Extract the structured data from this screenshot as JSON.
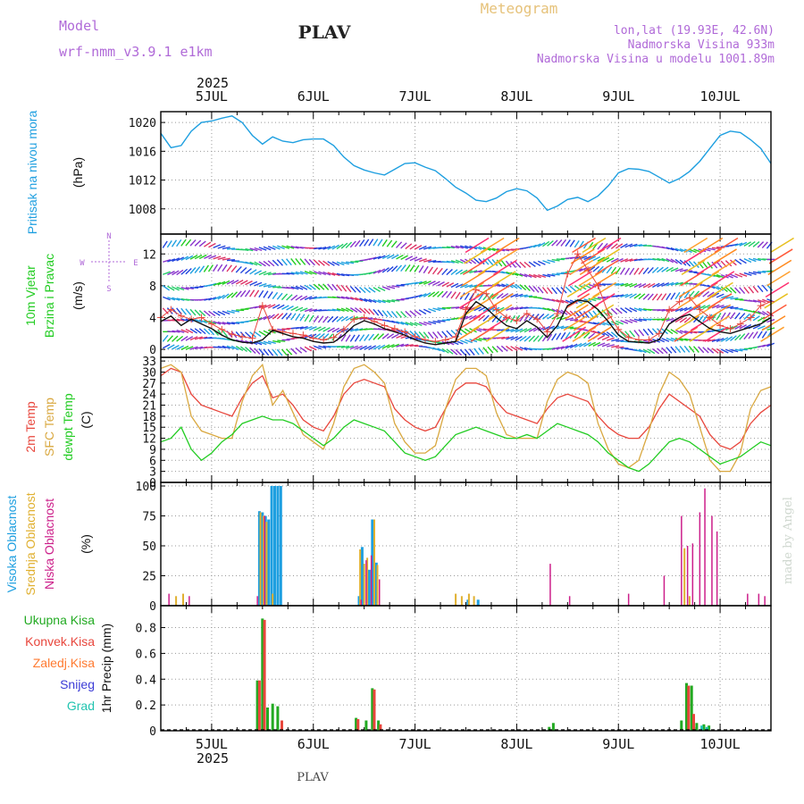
{
  "header": {
    "model_label": "Model",
    "model_name": "wrf-nmm_v3.9.1  e1km",
    "station": "PLAV",
    "title": "Meteogram",
    "location": "lon,lat (19.93E, 42.6N)",
    "altitude": "Nadmorska Visina 933m",
    "model_altitude": "Nadmorska Visina u modelu 1001.89m",
    "footer_station": "PLAV",
    "credit": "made by Angel"
  },
  "time_axis": {
    "year": "2025",
    "day_labels": [
      "5JUL",
      "6JUL",
      "7JUL",
      "8JUL",
      "9JUL",
      "10JUL"
    ],
    "day_values": [
      5,
      6,
      7,
      8,
      9,
      10
    ],
    "range_days": [
      4.5,
      10.5
    ]
  },
  "colors": {
    "pressure": "#1e9fe0",
    "t2m": "#e8463c",
    "tsfc": "#d9a840",
    "tdew": "#22cc22",
    "wind": "#111111",
    "wind_max": "#e8463c",
    "cloud_high": "#1e9fe0",
    "cloud_mid": "#e0b030",
    "cloud_low": "#cc1f8a",
    "precip_total": "#22aa22",
    "precip_conv": "#e8463c",
    "precip_frozen": "#ff7a30",
    "snow": "#3b3bd6",
    "hail": "#22c4b0"
  },
  "chart_data": [
    {
      "type": "line",
      "panel": "pressure",
      "ylabel": [
        "Pritisak na nivou mora",
        "(hPa)"
      ],
      "ylim": [
        1004.5,
        1021.5
      ],
      "yticks": [
        1008,
        1012,
        1016,
        1020
      ],
      "series": [
        {
          "x": [
            4.5,
            4.6,
            4.7,
            4.8,
            4.9,
            5.0,
            5.1,
            5.2,
            5.3,
            5.4,
            5.5,
            5.6,
            5.7,
            5.8,
            5.9,
            6.0,
            6.1,
            6.2,
            6.3,
            6.4,
            6.5,
            6.6,
            6.7,
            6.8,
            6.9,
            7.0,
            7.1,
            7.2,
            7.3,
            7.4,
            7.5,
            7.6,
            7.7,
            7.8,
            7.9,
            8.0,
            8.1,
            8.2,
            8.3,
            8.4,
            8.5,
            8.6,
            8.7,
            8.8,
            8.9,
            9.0,
            9.1,
            9.2,
            9.3,
            9.4,
            9.5,
            9.6,
            9.7,
            9.8,
            9.9,
            10.0,
            10.1,
            10.2,
            10.3,
            10.4,
            10.5
          ],
          "values": [
            1018.5,
            1016.5,
            1016.8,
            1018.8,
            1020.0,
            1020.2,
            1020.6,
            1020.9,
            1020.0,
            1018.2,
            1017.0,
            1018.0,
            1017.4,
            1017.2,
            1017.6,
            1017.7,
            1017.7,
            1016.8,
            1015.2,
            1014.0,
            1013.4,
            1013.0,
            1012.7,
            1013.5,
            1014.3,
            1014.4,
            1013.8,
            1013.3,
            1012.2,
            1011.0,
            1010.2,
            1009.2,
            1009.0,
            1009.5,
            1010.4,
            1010.8,
            1010.5,
            1009.5,
            1007.8,
            1008.4,
            1009.3,
            1009.6,
            1009.0,
            1009.8,
            1011.2,
            1013.0,
            1013.6,
            1013.5,
            1013.2,
            1012.4,
            1011.6,
            1012.2,
            1013.2,
            1014.6,
            1016.4,
            1018.2,
            1018.8,
            1018.6,
            1017.6,
            1016.4,
            1014.3
          ]
        }
      ]
    },
    {
      "type": "line",
      "panel": "wind",
      "ylabel": [
        "10m Vjetar",
        "Brzina i Pravac",
        "(m/s)"
      ],
      "compass": {
        "n": "N",
        "e": "E",
        "s": "S",
        "w": "W"
      },
      "ylim": [
        -1,
        14.5
      ],
      "yticks": [
        0,
        4,
        8,
        12
      ],
      "series": [
        {
          "name": "speed",
          "x": [
            4.5,
            4.6,
            4.7,
            4.8,
            4.9,
            5.0,
            5.1,
            5.2,
            5.3,
            5.4,
            5.5,
            5.6,
            5.7,
            5.8,
            5.9,
            6.0,
            6.1,
            6.2,
            6.3,
            6.4,
            6.5,
            6.6,
            6.7,
            6.8,
            6.9,
            7.0,
            7.1,
            7.2,
            7.3,
            7.4,
            7.5,
            7.6,
            7.7,
            7.8,
            7.9,
            8.0,
            8.1,
            8.2,
            8.3,
            8.4,
            8.5,
            8.6,
            8.7,
            8.8,
            8.9,
            9.0,
            9.1,
            9.2,
            9.3,
            9.4,
            9.5,
            9.6,
            9.7,
            9.8,
            9.9,
            10.0,
            10.1,
            10.2,
            10.3,
            10.4,
            10.5
          ],
          "values": [
            3.5,
            4.2,
            3.0,
            3.8,
            3.2,
            2.6,
            1.8,
            1.2,
            0.9,
            0.8,
            1.2,
            2.4,
            2.0,
            1.6,
            1.4,
            1.0,
            0.8,
            0.9,
            1.8,
            3.0,
            3.6,
            3.2,
            2.6,
            2.2,
            1.8,
            1.2,
            0.8,
            0.6,
            0.8,
            1.0,
            4.5,
            6.0,
            5.2,
            4.0,
            3.0,
            2.6,
            3.6,
            2.8,
            1.5,
            3.0,
            5.5,
            6.2,
            6.0,
            5.0,
            3.5,
            1.8,
            1.0,
            0.9,
            0.8,
            1.2,
            3.2,
            4.0,
            4.4,
            3.5,
            2.6,
            2.2,
            2.0,
            2.4,
            2.8,
            3.2,
            4.0
          ]
        },
        {
          "name": "gust",
          "x": [
            4.5,
            4.6,
            4.7,
            4.8,
            4.9,
            5.0,
            5.1,
            5.2,
            5.3,
            5.4,
            5.5,
            5.6,
            5.7,
            5.8,
            5.9,
            6.0,
            6.1,
            6.2,
            6.3,
            6.4,
            6.5,
            6.6,
            6.7,
            6.8,
            6.9,
            7.0,
            7.1,
            7.2,
            7.3,
            7.4,
            7.5,
            7.6,
            7.7,
            7.8,
            7.9,
            8.0,
            8.1,
            8.2,
            8.3,
            8.4,
            8.5,
            8.6,
            8.7,
            8.8,
            8.9,
            9.0,
            9.1,
            9.2,
            9.3,
            9.4,
            9.5,
            9.6,
            9.7,
            9.8,
            9.9,
            10.0,
            10.1,
            10.2,
            10.3,
            10.4,
            10.5
          ],
          "values": [
            4.0,
            5.0,
            4.2,
            3.8,
            4.0,
            3.2,
            2.5,
            1.9,
            1.6,
            1.4,
            5.5,
            2.5,
            2.2,
            2.0,
            1.8,
            1.4,
            1.2,
            1.5,
            2.5,
            3.8,
            4.0,
            3.5,
            3.0,
            2.6,
            2.2,
            1.6,
            1.2,
            1.0,
            1.2,
            1.6,
            5.0,
            7.5,
            7.0,
            5.0,
            4.0,
            3.6,
            4.5,
            3.8,
            2.2,
            4.5,
            9.5,
            12.0,
            10.0,
            8.0,
            4.5,
            2.5,
            1.5,
            1.2,
            1.2,
            2.0,
            5.0,
            6.0,
            6.5,
            5.0,
            4.0,
            3.0,
            2.6,
            3.2,
            4.0,
            5.5,
            6.0
          ]
        }
      ]
    },
    {
      "type": "line",
      "panel": "temperature",
      "ylabel": [
        "2m Temp",
        "SFC Temp",
        "dewpt Temp",
        "(C)"
      ],
      "ylim": [
        0,
        34
      ],
      "yticks": [
        0,
        3,
        6,
        9,
        12,
        15,
        18,
        21,
        24,
        27,
        30,
        33
      ],
      "series": [
        {
          "name": "2m Temp",
          "x": [
            4.5,
            4.6,
            4.7,
            4.8,
            4.9,
            5.0,
            5.1,
            5.2,
            5.3,
            5.4,
            5.5,
            5.6,
            5.7,
            5.8,
            5.9,
            6.0,
            6.1,
            6.2,
            6.3,
            6.4,
            6.5,
            6.6,
            6.7,
            6.8,
            6.9,
            7.0,
            7.1,
            7.2,
            7.3,
            7.4,
            7.5,
            7.6,
            7.7,
            7.8,
            7.9,
            8.0,
            8.1,
            8.2,
            8.3,
            8.4,
            8.5,
            8.6,
            8.7,
            8.8,
            8.9,
            9.0,
            9.1,
            9.2,
            9.3,
            9.4,
            9.5,
            9.6,
            9.7,
            9.8,
            9.9,
            10.0,
            10.1,
            10.2,
            10.3,
            10.4,
            10.5
          ],
          "values": [
            29,
            31,
            30,
            24,
            21,
            20,
            19,
            18,
            23,
            27,
            29,
            23,
            24,
            21,
            17,
            15,
            14,
            18,
            24,
            27,
            28,
            27,
            26,
            20,
            17,
            15,
            14,
            15,
            20,
            25,
            27,
            27,
            26,
            22,
            19,
            18,
            17,
            16,
            20,
            23,
            24,
            23,
            22,
            18,
            15,
            13,
            12,
            12,
            15,
            20,
            24,
            22,
            20,
            18,
            13,
            10,
            9,
            11,
            16,
            19,
            21
          ]
        },
        {
          "name": "SFC Temp",
          "x": [
            4.5,
            4.6,
            4.7,
            4.8,
            4.9,
            5.0,
            5.1,
            5.2,
            5.3,
            5.4,
            5.5,
            5.6,
            5.7,
            5.8,
            5.9,
            6.0,
            6.1,
            6.2,
            6.3,
            6.4,
            6.5,
            6.6,
            6.7,
            6.8,
            6.9,
            7.0,
            7.1,
            7.2,
            7.3,
            7.4,
            7.5,
            7.6,
            7.7,
            7.8,
            7.9,
            8.0,
            8.1,
            8.2,
            8.3,
            8.4,
            8.5,
            8.6,
            8.7,
            8.8,
            8.9,
            9.0,
            9.1,
            9.2,
            9.3,
            9.4,
            9.5,
            9.6,
            9.7,
            9.8,
            9.9,
            10.0,
            10.1,
            10.2,
            10.3,
            10.4,
            10.5
          ],
          "values": [
            31,
            32,
            30,
            18,
            14,
            13,
            12,
            12,
            22,
            29,
            32,
            21,
            25,
            19,
            13,
            11,
            9,
            16,
            26,
            31,
            32,
            30,
            27,
            16,
            11,
            8,
            8,
            10,
            20,
            28,
            31,
            31,
            29,
            19,
            13,
            12,
            12,
            12,
            22,
            28,
            30,
            29,
            27,
            16,
            9,
            5,
            4,
            6,
            14,
            24,
            30,
            28,
            24,
            15,
            6,
            3,
            3,
            8,
            20,
            25,
            26
          ]
        },
        {
          "name": "dewpt Temp",
          "x": [
            4.5,
            4.6,
            4.7,
            4.8,
            4.9,
            5.0,
            5.1,
            5.2,
            5.3,
            5.4,
            5.5,
            5.6,
            5.7,
            5.8,
            5.9,
            6.0,
            6.1,
            6.2,
            6.3,
            6.4,
            6.5,
            6.6,
            6.7,
            6.8,
            6.9,
            7.0,
            7.1,
            7.2,
            7.3,
            7.4,
            7.5,
            7.6,
            7.7,
            7.8,
            7.9,
            8.0,
            8.1,
            8.2,
            8.3,
            8.4,
            8.5,
            8.6,
            8.7,
            8.8,
            8.9,
            9.0,
            9.1,
            9.2,
            9.3,
            9.4,
            9.5,
            9.6,
            9.7,
            9.8,
            9.9,
            10.0,
            10.1,
            10.2,
            10.3,
            10.4,
            10.5
          ],
          "values": [
            11,
            12,
            15,
            9,
            6,
            8,
            11,
            13,
            16,
            17,
            18,
            17,
            17,
            16,
            14,
            12,
            10,
            12,
            15,
            17,
            16,
            15,
            14,
            11,
            8,
            7,
            6,
            7,
            10,
            13,
            14,
            15,
            14,
            13,
            12,
            12,
            13,
            12,
            14,
            16,
            15,
            14,
            13,
            11,
            8,
            6,
            4,
            3,
            5,
            8,
            11,
            12,
            11,
            9,
            7,
            5,
            6,
            7,
            9,
            11,
            10
          ]
        }
      ]
    },
    {
      "type": "bar",
      "panel": "clouds",
      "ylabel": [
        "Visoka Oblacnost",
        "Srednja Oblacnost",
        "Niska Oblacnost",
        "(%)"
      ],
      "ylim": [
        0,
        103
      ],
      "yticks": [
        0,
        25,
        50,
        75,
        100
      ],
      "series": [
        {
          "name": "Visoka Oblacnost",
          "x": [
            5.47,
            5.5,
            5.53,
            5.56,
            5.59,
            5.62,
            5.65,
            5.68,
            6.45,
            6.48,
            6.55,
            6.58,
            6.62,
            7.52,
            7.62
          ],
          "values": [
            79,
            78,
            75,
            72,
            100,
            100,
            100,
            100,
            8,
            49,
            30,
            72,
            36,
            5,
            5
          ]
        },
        {
          "name": "Srednja Oblacnost",
          "x": [
            4.65,
            4.72,
            5.48,
            5.51,
            5.54,
            5.6,
            6.46,
            6.5,
            6.53,
            6.6,
            6.63,
            7.4,
            7.46,
            7.53,
            7.58,
            9.65,
            9.7
          ],
          "values": [
            8,
            10,
            78,
            75,
            70,
            10,
            47,
            35,
            40,
            72,
            34,
            10,
            8,
            10,
            8,
            48,
            8
          ]
        },
        {
          "name": "Niska Oblacnost",
          "x": [
            4.58,
            4.78,
            5.45,
            5.52,
            6.47,
            6.52,
            6.57,
            6.65,
            8.33,
            8.52,
            9.1,
            9.45,
            9.62,
            9.68,
            9.73,
            9.8,
            9.85,
            9.92,
            9.97,
            10.27,
            10.38,
            10.44
          ],
          "values": [
            10,
            8,
            8,
            75,
            5,
            38,
            42,
            22,
            35,
            8,
            10,
            25,
            75,
            50,
            52,
            78,
            98,
            75,
            62,
            10,
            10,
            8
          ]
        }
      ]
    },
    {
      "type": "bar",
      "panel": "precipitation",
      "ylabel": [
        "1hr Precip (mm)"
      ],
      "legend": [
        "Ukupna Kisa",
        "Konvek.Kisa",
        "Zaledj.Kisa",
        "Snijeg",
        "Grad"
      ],
      "ylim": [
        0,
        0.97
      ],
      "yticks": [
        0,
        0.2,
        0.4,
        0.6,
        0.8
      ],
      "series": [
        {
          "name": "Ukupna Kisa",
          "x": [
            5.45,
            5.5,
            5.55,
            5.6,
            5.65,
            6.42,
            6.52,
            6.58,
            6.64,
            8.32,
            8.36,
            9.62,
            9.67,
            9.72,
            9.77,
            9.84,
            9.89
          ],
          "values": [
            0.39,
            0.87,
            0.18,
            0.21,
            0.19,
            0.1,
            0.08,
            0.33,
            0.08,
            0.03,
            0.06,
            0.08,
            0.37,
            0.35,
            0.06,
            0.05,
            0.04
          ]
        },
        {
          "name": "Konvek.Kisa",
          "x": [
            5.47,
            5.52,
            5.69,
            6.44,
            6.6,
            6.66,
            9.69,
            9.74
          ],
          "values": [
            0.39,
            0.86,
            0.08,
            0.09,
            0.32,
            0.05,
            0.35,
            0.13
          ]
        },
        {
          "name": "Grad",
          "x": [
            9.82,
            9.87
          ],
          "values": [
            0.04,
            0.03
          ]
        }
      ]
    }
  ]
}
